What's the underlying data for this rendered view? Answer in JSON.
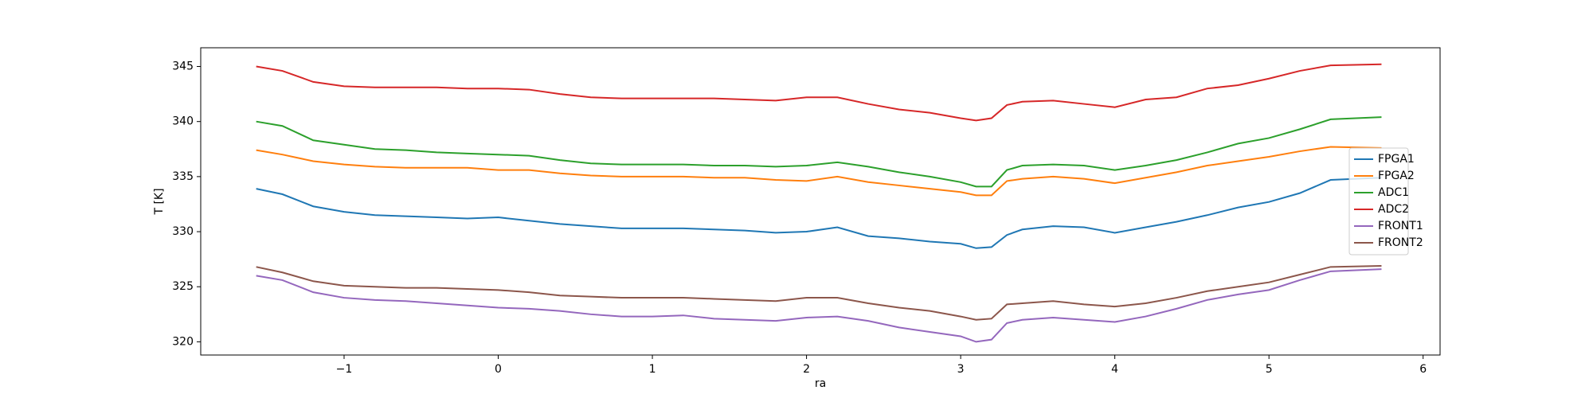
{
  "chart_data": {
    "type": "line",
    "xlabel": "ra",
    "ylabel": "T [K]",
    "x": [
      -1.57,
      -1.4,
      -1.2,
      -1.0,
      -0.8,
      -0.6,
      -0.4,
      -0.2,
      0,
      0.2,
      0.4,
      0.6,
      0.8,
      1.0,
      1.2,
      1.4,
      1.6,
      1.8,
      2.0,
      2.2,
      2.4,
      2.6,
      2.8,
      3.0,
      3.1,
      3.2,
      3.3,
      3.4,
      3.6,
      3.8,
      4.0,
      4.2,
      4.4,
      4.6,
      4.8,
      5.0,
      5.2,
      5.4,
      5.73
    ],
    "series": [
      {
        "name": "FPGA1",
        "color": "#1f77b4",
        "values": [
          333.9,
          333.4,
          332.3,
          331.8,
          331.5,
          331.4,
          331.3,
          331.2,
          331.3,
          331.0,
          330.7,
          330.5,
          330.3,
          330.3,
          330.3,
          330.2,
          330.1,
          329.9,
          330.0,
          330.4,
          329.6,
          329.4,
          329.1,
          328.9,
          328.5,
          328.6,
          329.7,
          330.2,
          330.5,
          330.4,
          329.9,
          330.4,
          330.9,
          331.5,
          332.2,
          332.7,
          333.5,
          334.7,
          334.9
        ]
      },
      {
        "name": "FPGA2",
        "color": "#ff7f0e",
        "values": [
          337.4,
          337.0,
          336.4,
          336.1,
          335.9,
          335.8,
          335.8,
          335.8,
          335.6,
          335.6,
          335.3,
          335.1,
          335.0,
          335.0,
          335.0,
          334.9,
          334.9,
          334.7,
          334.6,
          335.0,
          334.5,
          334.2,
          333.9,
          333.6,
          333.3,
          333.3,
          334.6,
          334.8,
          335.0,
          334.8,
          334.4,
          334.9,
          335.4,
          336.0,
          336.4,
          336.8,
          337.3,
          337.7,
          337.6
        ]
      },
      {
        "name": "ADC1",
        "color": "#2ca02c",
        "values": [
          340.0,
          339.6,
          338.3,
          337.9,
          337.5,
          337.4,
          337.2,
          337.1,
          337.0,
          336.9,
          336.5,
          336.2,
          336.1,
          336.1,
          336.1,
          336.0,
          336.0,
          335.9,
          336.0,
          336.3,
          335.9,
          335.4,
          335.0,
          334.5,
          334.1,
          334.1,
          335.6,
          336.0,
          336.1,
          336.0,
          335.6,
          336.0,
          336.5,
          337.2,
          338.0,
          338.5,
          339.3,
          340.2,
          340.4
        ]
      },
      {
        "name": "ADC2",
        "color": "#d62728",
        "values": [
          345.0,
          344.6,
          343.6,
          343.2,
          343.1,
          343.1,
          343.1,
          343.0,
          343.0,
          342.9,
          342.5,
          342.2,
          342.1,
          342.1,
          342.1,
          342.1,
          342.0,
          341.9,
          342.2,
          342.2,
          341.6,
          341.1,
          340.8,
          340.3,
          340.1,
          340.3,
          341.5,
          341.8,
          341.9,
          341.6,
          341.3,
          342.0,
          342.2,
          343.0,
          343.3,
          343.9,
          344.6,
          345.1,
          345.2
        ]
      },
      {
        "name": "FRONT1",
        "color": "#9467bd",
        "values": [
          326.0,
          325.6,
          324.5,
          324.0,
          323.8,
          323.7,
          323.5,
          323.3,
          323.1,
          323.0,
          322.8,
          322.5,
          322.3,
          322.3,
          322.4,
          322.1,
          322.0,
          321.9,
          322.2,
          322.3,
          321.9,
          321.3,
          320.9,
          320.5,
          320.0,
          320.2,
          321.7,
          322.0,
          322.2,
          322.0,
          321.8,
          322.3,
          323.0,
          323.8,
          324.3,
          324.7,
          325.6,
          326.4,
          326.6
        ]
      },
      {
        "name": "FRONT2",
        "color": "#8c564b",
        "values": [
          326.8,
          326.3,
          325.5,
          325.1,
          325.0,
          324.9,
          324.9,
          324.8,
          324.7,
          324.5,
          324.2,
          324.1,
          324.0,
          324.0,
          324.0,
          323.9,
          323.8,
          323.7,
          324.0,
          324.0,
          323.5,
          323.1,
          322.8,
          322.3,
          322.0,
          322.1,
          323.4,
          323.5,
          323.7,
          323.4,
          323.2,
          323.5,
          324.0,
          324.6,
          325.0,
          325.4,
          326.1,
          326.8,
          326.9
        ]
      }
    ],
    "xlim": [
      -1.93,
      6.11
    ],
    "ylim": [
      318.8,
      346.7
    ],
    "xticks": [
      {
        "value": -1,
        "label": "−1"
      },
      0,
      1,
      2,
      3,
      4,
      5,
      6
    ],
    "yticks": [
      320,
      325,
      330,
      335,
      340,
      345
    ],
    "legend_loc": "center right",
    "grid": false
  }
}
